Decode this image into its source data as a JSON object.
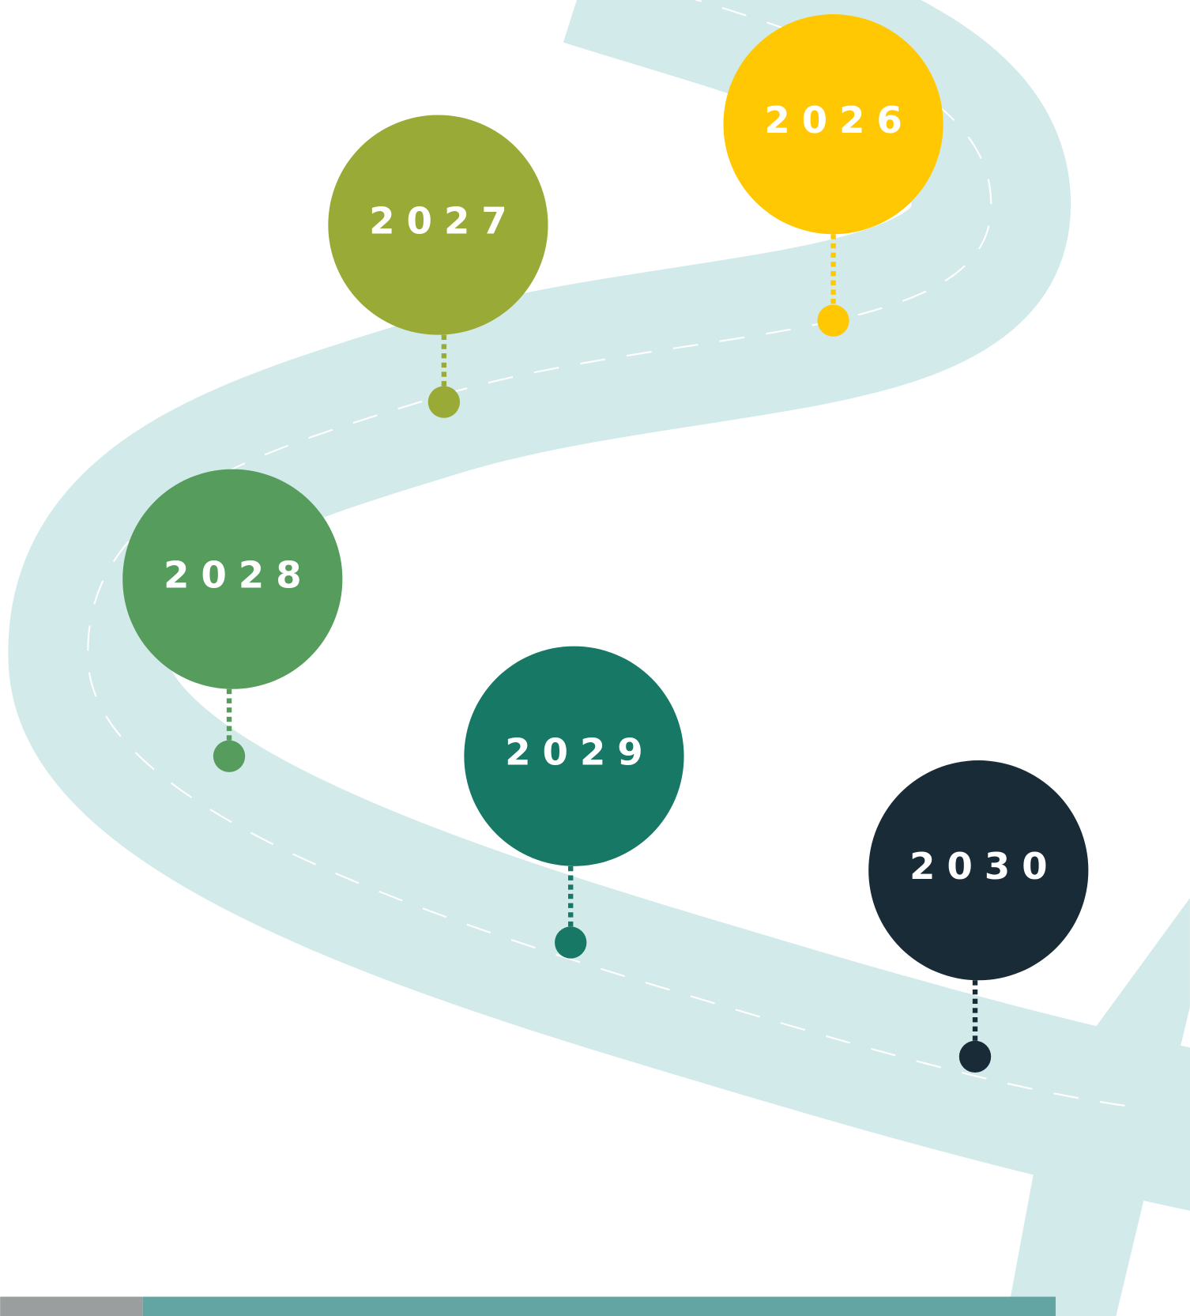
{
  "milestones": [
    {
      "label": "2026",
      "color": "#FFC802"
    },
    {
      "label": "2027",
      "color": "#9AAA36"
    },
    {
      "label": "2028",
      "color": "#559C5D"
    },
    {
      "label": "2029",
      "color": "#177865"
    },
    {
      "label": "2030",
      "color": "#192B36"
    }
  ]
}
